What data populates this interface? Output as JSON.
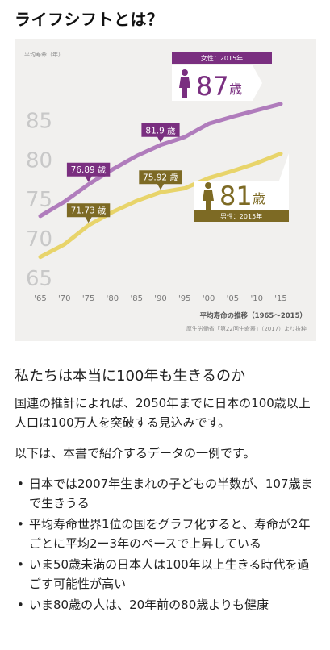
{
  "page": {
    "title": "ライフシフトとは？"
  },
  "chart_data": {
    "type": "line",
    "axis_label": "平均寿命（年）",
    "caption": "平均寿命の推移（1965〜2015）",
    "source": "厚生労働省「第22回生命表」（2017）より抜粋",
    "x_tick_labels": [
      "'65",
      "'70",
      "'75",
      "'80",
      "'85",
      "'90",
      "'95",
      "'00",
      "'05",
      "'10",
      "'15"
    ],
    "y_tick_labels": [
      "65",
      "70",
      "75",
      "80",
      "85"
    ],
    "x": [
      1965,
      1970,
      1975,
      1980,
      1985,
      1990,
      1995,
      2000,
      2005,
      2010,
      2015
    ],
    "ylim": [
      65,
      87.5
    ],
    "xlim": [
      1965,
      2015
    ],
    "series": [
      {
        "name": "女性",
        "color": "#b07cbc",
        "values": [
          72.9,
          74.7,
          76.9,
          78.8,
          80.5,
          81.9,
          82.9,
          84.6,
          85.5,
          86.3,
          87.1
        ]
      },
      {
        "name": "男性",
        "color": "#e8d46a",
        "values": [
          67.7,
          69.3,
          71.7,
          73.4,
          74.8,
          75.9,
          76.4,
          77.7,
          78.6,
          79.6,
          80.8
        ]
      }
    ],
    "point_labels": [
      {
        "text": "76.89 歳",
        "x": 1975,
        "y": 76.89,
        "series": 0,
        "color": "#7a2f80"
      },
      {
        "text": "81.9 歳",
        "x": 1990,
        "y": 81.9,
        "series": 0,
        "color": "#7a2f80"
      },
      {
        "text": "71.73 歳",
        "x": 1975,
        "y": 71.73,
        "series": 1,
        "color": "#7d6a24"
      },
      {
        "text": "75.92 歳",
        "x": 1990,
        "y": 75.92,
        "series": 1,
        "color": "#7d6a24"
      }
    ],
    "callouts": [
      {
        "tag": "女性：2015年",
        "value": "87",
        "unit": "歳",
        "color": "#7a2f80"
      },
      {
        "tag": "男性：2015年",
        "value": "81",
        "unit": "歳",
        "color": "#7d6a24"
      }
    ]
  },
  "article": {
    "heading": "私たちは本当に100年も生きるのか",
    "para1": "国連の推計によれば、2050年までに日本の100歳以上人口は100万人を突破する見込みです。",
    "para2": "以下は、本書で紹介するデータの一例です。",
    "bullets": [
      "日本では2007年生まれの子どもの半数が、107歳まで生きうる",
      "平均寿命世界1位の国をグラフ化すると、寿命が2年ごとに平均2ー3年のペースで上昇している",
      "いま50歳未満の日本人は100年以上生きる時代を過ごす可能性が高い",
      "いま80歳の人は、20年前の80歳よりも健康"
    ]
  }
}
